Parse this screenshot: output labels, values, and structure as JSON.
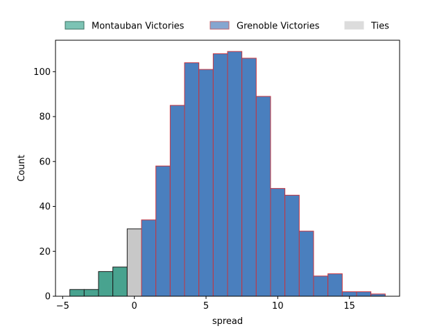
{
  "chart_data": {
    "type": "bar",
    "xlabel": "spread",
    "ylabel": "Count",
    "xlim": [
      -5.5,
      18.5
    ],
    "ylim": [
      0,
      114
    ],
    "xticks": [
      -5,
      0,
      5,
      10,
      15
    ],
    "yticks": [
      0,
      20,
      40,
      60,
      80,
      100
    ],
    "grid": false,
    "legend_position": "top-center",
    "legend": [
      {
        "label": "Montauban Victories",
        "color": "#7cc3b4",
        "edge": "#3d7062"
      },
      {
        "label": "Grenoble Victories",
        "color": "#85a6d0",
        "edge": "#c0626a"
      },
      {
        "label": "Ties",
        "color": "#dcdcdc",
        "edge": "#dcdcdc"
      }
    ],
    "series": [
      {
        "name": "Montauban Victories",
        "fill": "#48a38f",
        "edge": "#1a1a1a",
        "bins": [
          {
            "x0": -4.5,
            "x1": -3.5,
            "count": 3
          },
          {
            "x0": -3.5,
            "x1": -2.5,
            "count": 3
          },
          {
            "x0": -2.5,
            "x1": -1.5,
            "count": 11
          },
          {
            "x0": -1.5,
            "x1": -0.5,
            "count": 13
          }
        ]
      },
      {
        "name": "Ties",
        "fill": "#c8c8c8",
        "edge": "#1a1a1a",
        "bins": [
          {
            "x0": -0.5,
            "x1": 0.5,
            "count": 30
          }
        ]
      },
      {
        "name": "Grenoble Victories",
        "fill": "#4a7fbe",
        "edge": "#c6343f",
        "bins": [
          {
            "x0": 0.5,
            "x1": 1.5,
            "count": 34
          },
          {
            "x0": 1.5,
            "x1": 2.5,
            "count": 58
          },
          {
            "x0": 2.5,
            "x1": 3.5,
            "count": 85
          },
          {
            "x0": 3.5,
            "x1": 4.5,
            "count": 104
          },
          {
            "x0": 4.5,
            "x1": 5.5,
            "count": 101
          },
          {
            "x0": 5.5,
            "x1": 6.5,
            "count": 108
          },
          {
            "x0": 6.5,
            "x1": 7.5,
            "count": 109
          },
          {
            "x0": 7.5,
            "x1": 8.5,
            "count": 106
          },
          {
            "x0": 8.5,
            "x1": 9.5,
            "count": 89
          },
          {
            "x0": 9.5,
            "x1": 10.5,
            "count": 48
          },
          {
            "x0": 10.5,
            "x1": 11.5,
            "count": 45
          },
          {
            "x0": 11.5,
            "x1": 12.5,
            "count": 29
          },
          {
            "x0": 12.5,
            "x1": 13.5,
            "count": 9
          },
          {
            "x0": 13.5,
            "x1": 14.5,
            "count": 10
          },
          {
            "x0": 14.5,
            "x1": 15.5,
            "count": 2
          },
          {
            "x0": 15.5,
            "x1": 16.5,
            "count": 2
          },
          {
            "x0": 16.5,
            "x1": 17.5,
            "count": 1
          }
        ]
      }
    ]
  }
}
